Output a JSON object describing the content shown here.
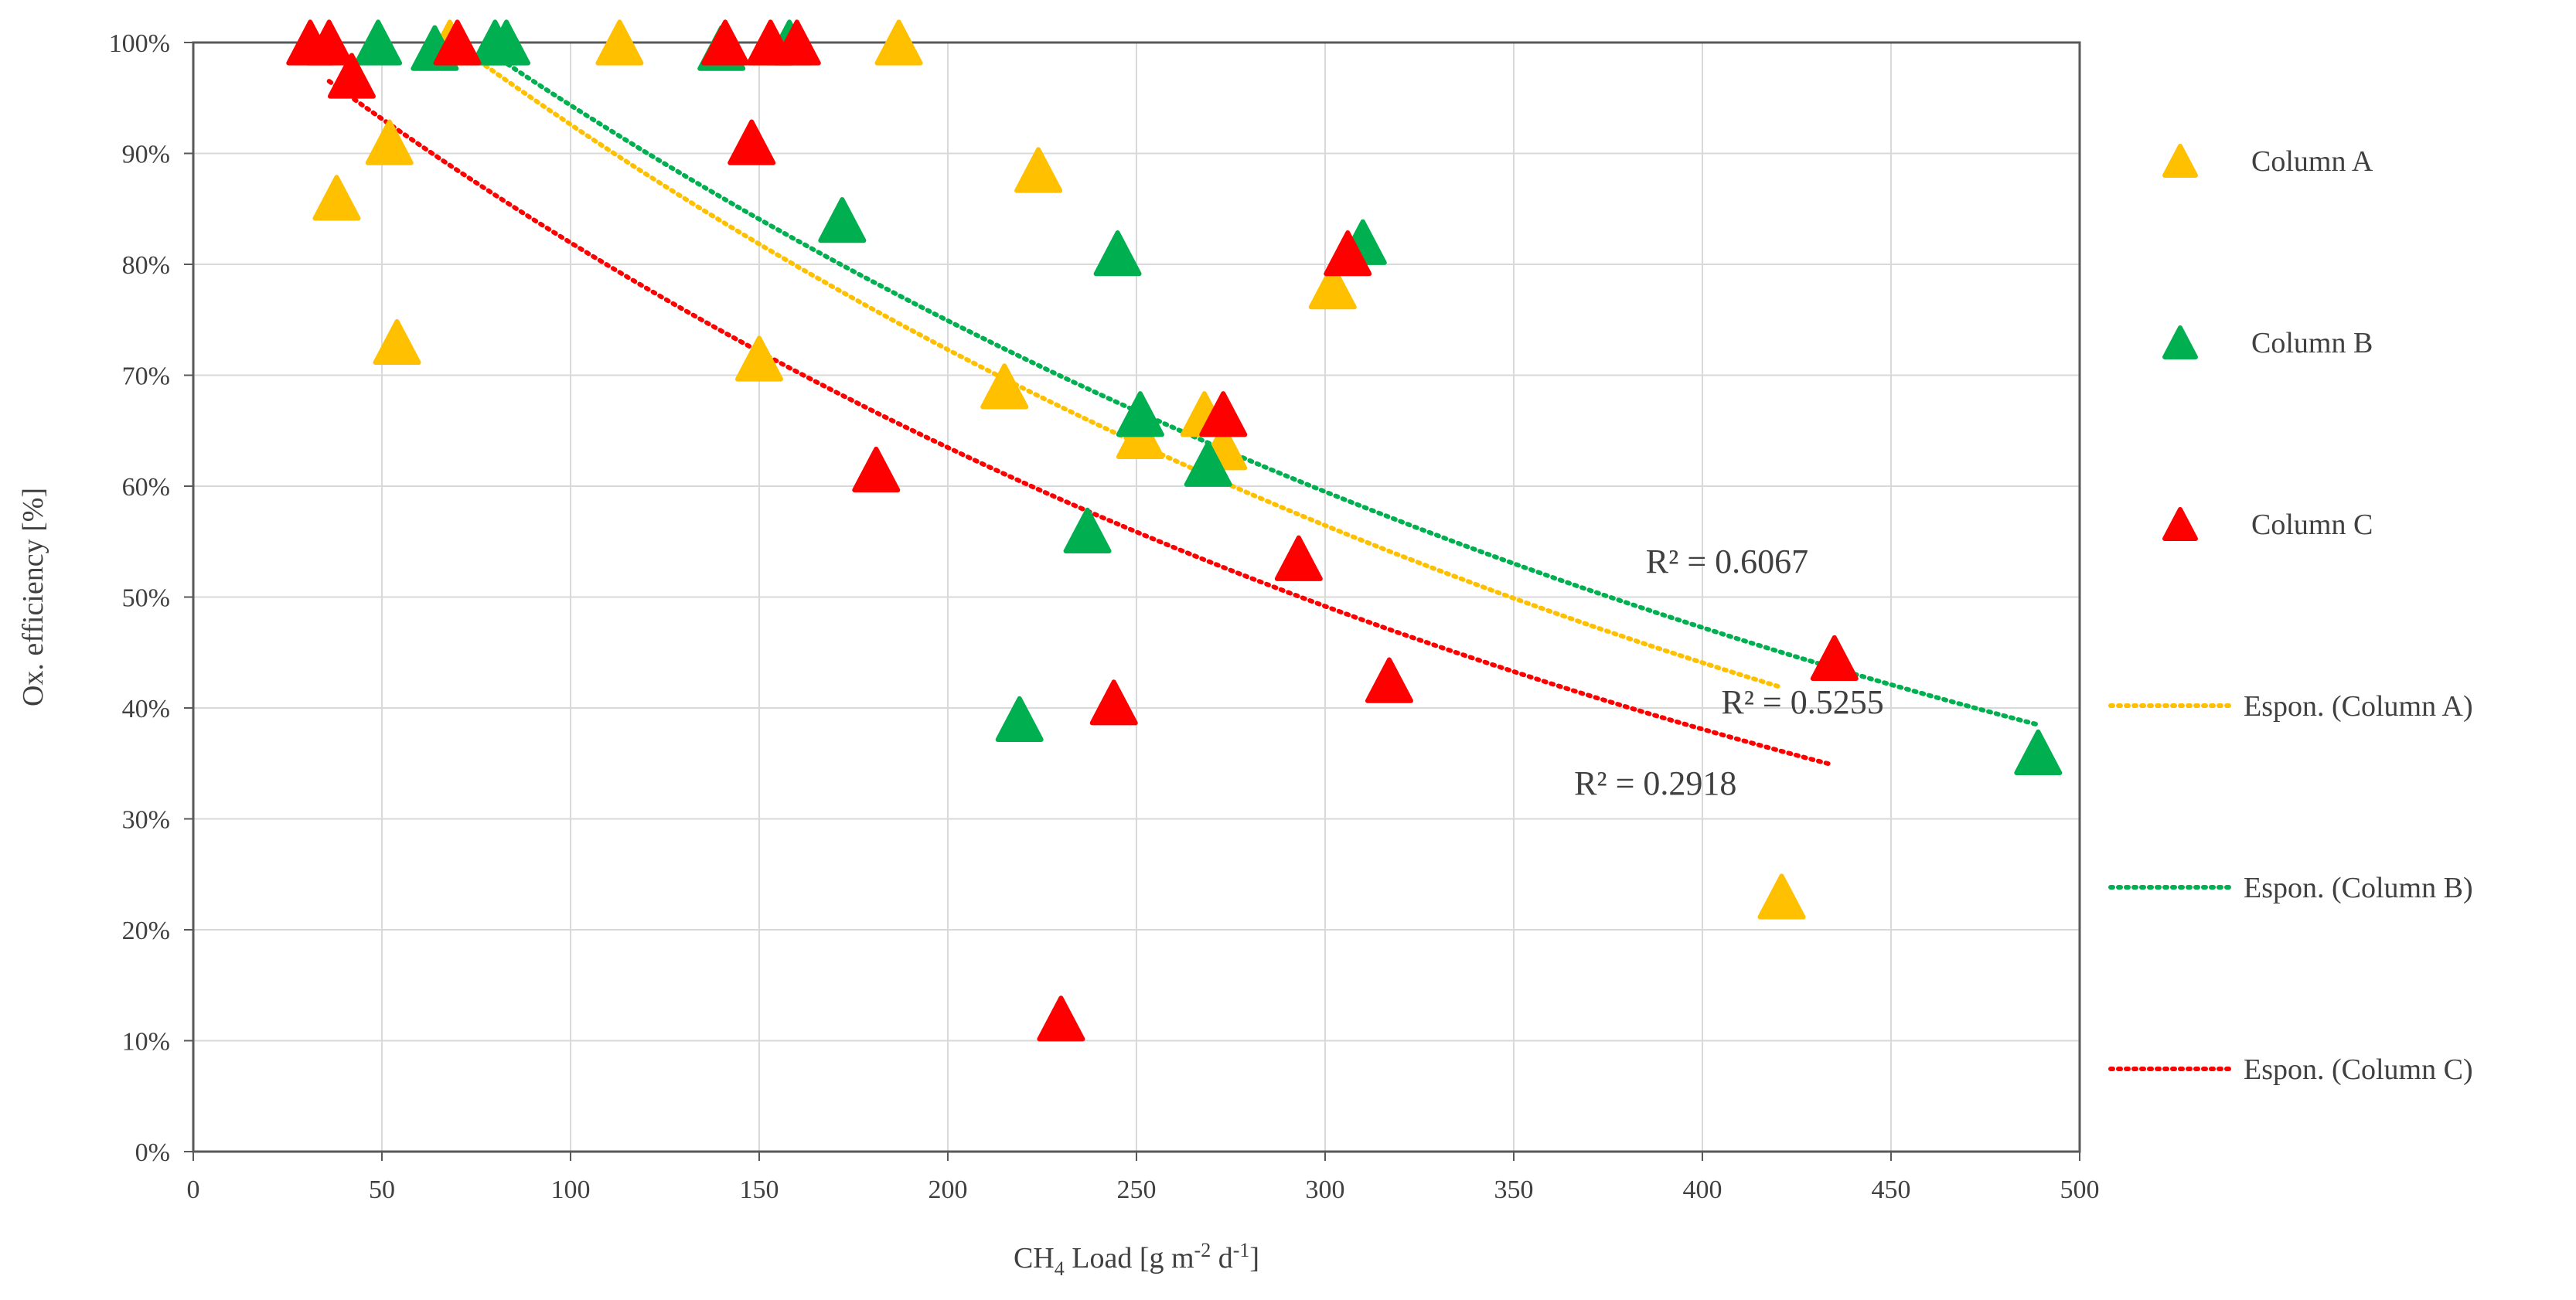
{
  "chart_data": {
    "type": "scatter",
    "xlabel": "CH",
    "xlabel_sub": "4",
    "xlabel_rest": " Load [g m",
    "xlabel_sup1": "-2",
    "xlabel_mid": " d",
    "xlabel_sup2": "-1",
    "xlabel_end": "]",
    "ylabel": "Ox. efficiency [%]",
    "xlim": [
      0,
      500
    ],
    "ylim": [
      0,
      100
    ],
    "x_ticks": [
      {
        "value": 0,
        "label": "0"
      },
      {
        "value": 50,
        "label": "50"
      },
      {
        "value": 100,
        "label": "100"
      },
      {
        "value": 150,
        "label": "150"
      },
      {
        "value": 200,
        "label": "200"
      },
      {
        "value": 250,
        "label": "250"
      },
      {
        "value": 300,
        "label": "300"
      },
      {
        "value": 350,
        "label": "350"
      },
      {
        "value": 400,
        "label": "400"
      },
      {
        "value": 450,
        "label": "450"
      },
      {
        "value": 500,
        "label": "500"
      }
    ],
    "y_ticks": [
      {
        "value": 0,
        "label": "0%"
      },
      {
        "value": 10,
        "label": "10%"
      },
      {
        "value": 20,
        "label": "20%"
      },
      {
        "value": 30,
        "label": "30%"
      },
      {
        "value": 40,
        "label": "40%"
      },
      {
        "value": 50,
        "label": "50%"
      },
      {
        "value": 60,
        "label": "60%"
      },
      {
        "value": 70,
        "label": "70%"
      },
      {
        "value": 80,
        "label": "80%"
      },
      {
        "value": 90,
        "label": "90%"
      },
      {
        "value": 100,
        "label": "100%"
      }
    ],
    "grid": true,
    "legend_position": "right",
    "series": [
      {
        "name": "Column A",
        "color": "#FFC000",
        "points": [
          [
            38,
            86
          ],
          [
            52,
            91
          ],
          [
            54,
            73
          ],
          [
            68,
            100
          ],
          [
            113,
            100
          ],
          [
            150,
            71.5
          ],
          [
            153,
            100
          ],
          [
            187,
            100
          ],
          [
            215,
            69
          ],
          [
            224,
            88.5
          ],
          [
            251,
            64.5
          ],
          [
            268,
            66.5
          ],
          [
            273,
            63.5
          ],
          [
            302,
            78
          ],
          [
            421,
            23
          ]
        ]
      },
      {
        "name": "Column B",
        "color": "#00B050",
        "points": [
          [
            49,
            100
          ],
          [
            64,
            99.5
          ],
          [
            80,
            100
          ],
          [
            83,
            100
          ],
          [
            140,
            99.5
          ],
          [
            158,
            100
          ],
          [
            172,
            84
          ],
          [
            219,
            39
          ],
          [
            237,
            56
          ],
          [
            245,
            81
          ],
          [
            251,
            66.5
          ],
          [
            269,
            62
          ],
          [
            310,
            82
          ],
          [
            489,
            36
          ]
        ]
      },
      {
        "name": "Column C",
        "color": "#FF0000",
        "points": [
          [
            31,
            100
          ],
          [
            36,
            100
          ],
          [
            42,
            97
          ],
          [
            70,
            100
          ],
          [
            141,
            100
          ],
          [
            148,
            91
          ],
          [
            153,
            100
          ],
          [
            160,
            100
          ],
          [
            181,
            61.5
          ],
          [
            230,
            12
          ],
          [
            244,
            40.5
          ],
          [
            273,
            66.5
          ],
          [
            293,
            53.5
          ],
          [
            306,
            81
          ],
          [
            317,
            42.5
          ],
          [
            435,
            44.5
          ]
        ]
      }
    ],
    "trendlines": [
      {
        "name": "Espon. (Column A)",
        "type": "exponential",
        "color": "#FFC000",
        "x_range": [
          68,
          421
        ],
        "a": 118.6,
        "b": -0.002474,
        "r2": "R² = 0.5255"
      },
      {
        "name": "Espon. (Column B)",
        "type": "exponential",
        "color": "#00B050",
        "x_range": [
          49,
          489
        ],
        "a": 118.8,
        "b": -0.002305,
        "r2": "R² = 0.6067"
      },
      {
        "name": "Espon. (Column C)",
        "type": "exponential",
        "color": "#FF0000",
        "x_range": [
          36,
          434
        ],
        "a": 105.8,
        "b": -0.002554,
        "r2": "R² = 0.2918"
      }
    ],
    "legend": [
      {
        "label": "Column A",
        "kind": "marker",
        "color": "#FFC000"
      },
      {
        "label": "Column B",
        "kind": "marker",
        "color": "#00B050"
      },
      {
        "label": "Column C",
        "kind": "marker",
        "color": "#FF0000"
      },
      {
        "label": "Espon. (Column A)",
        "kind": "line",
        "color": "#FFC000"
      },
      {
        "label": "Espon. (Column B)",
        "kind": "line",
        "color": "#00B050"
      },
      {
        "label": "Espon. (Column C)",
        "kind": "line",
        "color": "#FF0000"
      }
    ]
  }
}
